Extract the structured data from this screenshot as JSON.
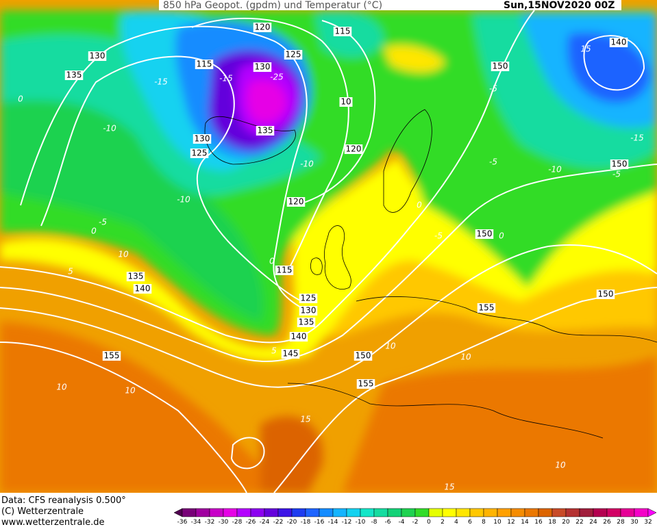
{
  "header": {
    "title": "850 hPa Geopot. (gpdm) und Temperatur (°C)",
    "date": "Sun,15NOV2020 00Z"
  },
  "map": {
    "geopotential_labels": [
      120,
      115,
      125,
      130,
      115,
      130,
      150,
      140,
      135,
      10,
      135,
      130,
      125,
      120,
      150,
      120,
      150,
      115,
      135,
      140,
      125,
      150,
      155,
      130,
      135,
      140,
      145,
      150,
      155,
      155
    ],
    "temperature_labels": [
      -15,
      -25,
      -10,
      -15,
      -5,
      -10,
      -15,
      -5,
      -10,
      -10,
      -5,
      0,
      0,
      5,
      10,
      10,
      10,
      10,
      10,
      10,
      15,
      15,
      0,
      5,
      0,
      -5,
      0,
      15,
      -5
    ]
  },
  "footer": {
    "source": "Data: CFS reanalysis 0.500°",
    "copyright": "(C) Wetterzentrale",
    "url": "www.wetterzentrale.de"
  },
  "legend": {
    "ticks": [
      -36,
      -34,
      -32,
      -30,
      -28,
      -26,
      -24,
      -22,
      -20,
      -18,
      -16,
      -14,
      -12,
      -10,
      -8,
      -6,
      -4,
      -2,
      0,
      2,
      4,
      6,
      8,
      10,
      12,
      14,
      16,
      18,
      20,
      22,
      24,
      26,
      28,
      30,
      32
    ],
    "colors": [
      "#500050",
      "#780078",
      "#a000a0",
      "#c800c8",
      "#e600e6",
      "#b400ff",
      "#8c00f0",
      "#6400dc",
      "#3c14e6",
      "#1e3cf0",
      "#1e64ff",
      "#148cff",
      "#14b4ff",
      "#14d2f0",
      "#14e6c8",
      "#14dca0",
      "#14d278",
      "#1ed250",
      "#32dc28",
      "#e6ff00",
      "#ffff00",
      "#ffe600",
      "#ffc800",
      "#ffb400",
      "#ffa000",
      "#f58c00",
      "#eb7800",
      "#dc6400",
      "#c84b28",
      "#b43232",
      "#a01e3c",
      "#b40050",
      "#d20064",
      "#e60096",
      "#f500c8",
      "#ff00ff"
    ]
  }
}
